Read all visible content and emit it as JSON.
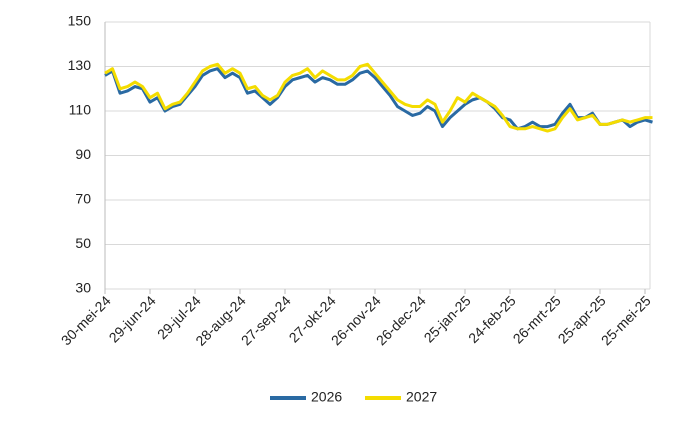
{
  "chart_data": {
    "type": "line",
    "categories": [
      "30-mei-24",
      null,
      null,
      null,
      null,
      null,
      "29-jun-24",
      null,
      null,
      null,
      null,
      null,
      "29-jul-24",
      null,
      null,
      null,
      null,
      null,
      "28-aug-24",
      null,
      null,
      null,
      null,
      null,
      "27-sep-24",
      null,
      null,
      null,
      null,
      null,
      "27-okt-24",
      null,
      null,
      null,
      null,
      null,
      "26-nov-24",
      null,
      null,
      null,
      null,
      null,
      "26-dec-24",
      null,
      null,
      null,
      null,
      null,
      "25-jan-25",
      null,
      null,
      null,
      null,
      null,
      "24-feb-25",
      null,
      null,
      null,
      null,
      null,
      "26-mrt-25",
      null,
      null,
      null,
      null,
      null,
      "25-apr-25",
      null,
      null,
      null,
      null,
      null,
      "25-mei-25",
      null
    ],
    "series": [
      {
        "name": "2026",
        "color": "#2a6aa3",
        "values": [
          126,
          128,
          118,
          119,
          121,
          120,
          114,
          116,
          110,
          112,
          113,
          117,
          121,
          126,
          128,
          129,
          125,
          127,
          125,
          118,
          119,
          116,
          113,
          116,
          121,
          124,
          125,
          126,
          123,
          125,
          124,
          122,
          122,
          124,
          127,
          128,
          125,
          121,
          117,
          112,
          110,
          108,
          109,
          112,
          110,
          103,
          107,
          110,
          113,
          115,
          116,
          114,
          111,
          107,
          106,
          102,
          103,
          105,
          103,
          103,
          104,
          109,
          113,
          107,
          107,
          109,
          104,
          104,
          105,
          106,
          103,
          105,
          106,
          105
        ]
      },
      {
        "name": "2027",
        "color": "#f4dc00",
        "values": [
          127,
          129,
          120,
          121,
          123,
          121,
          116,
          118,
          111,
          113,
          114,
          118,
          123,
          128,
          130,
          131,
          127,
          129,
          127,
          120,
          121,
          117,
          115,
          117,
          123,
          126,
          127,
          129,
          125,
          128,
          126,
          124,
          124,
          126,
          130,
          131,
          127,
          123,
          119,
          115,
          113,
          112,
          112,
          115,
          113,
          105,
          110,
          116,
          114,
          118,
          116,
          114,
          112,
          108,
          103,
          102,
          102,
          103,
          102,
          101,
          102,
          107,
          111,
          106,
          107,
          108,
          104,
          104,
          105,
          106,
          105,
          106,
          107,
          107
        ]
      }
    ],
    "ylim": [
      30,
      150
    ],
    "yticks": [
      30,
      50,
      70,
      90,
      110,
      130,
      150
    ],
    "grid": true,
    "legend": "bottom"
  }
}
